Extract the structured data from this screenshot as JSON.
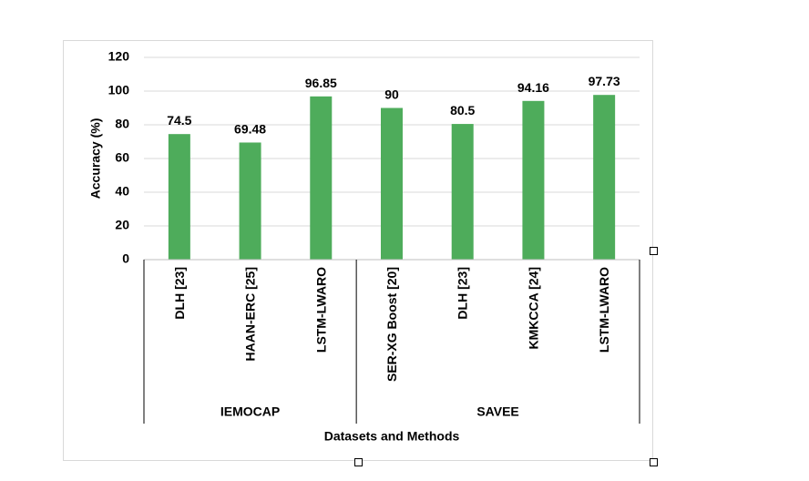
{
  "chart_data": {
    "type": "bar",
    "categories": [
      "DLH [23]",
      "HAAN-ERC [25]",
      "LSTM-LWARO",
      "SER-XG Boost [20]",
      "DLH [23]",
      "KMKCCA [24]",
      "LSTM-LWARO"
    ],
    "groups": [
      {
        "name": "IEMOCAP",
        "count": 3
      },
      {
        "name": "SAVEE",
        "count": 4
      }
    ],
    "values": [
      74.5,
      69.48,
      96.85,
      90,
      80.5,
      94.16,
      97.73
    ],
    "value_labels": [
      "74.5",
      "69.48",
      "96.85",
      "90",
      "80.5",
      "94.16",
      "97.73"
    ],
    "yticks": [
      "0",
      "20",
      "40",
      "60",
      "80",
      "100",
      "120"
    ],
    "ylim": [
      0,
      120
    ],
    "xlabel": "Datasets and Methods",
    "ylabel": "Accuracy (%)",
    "grid": true,
    "bar_color": "#4EAC5B",
    "grid_color": "#d9d9d9"
  }
}
